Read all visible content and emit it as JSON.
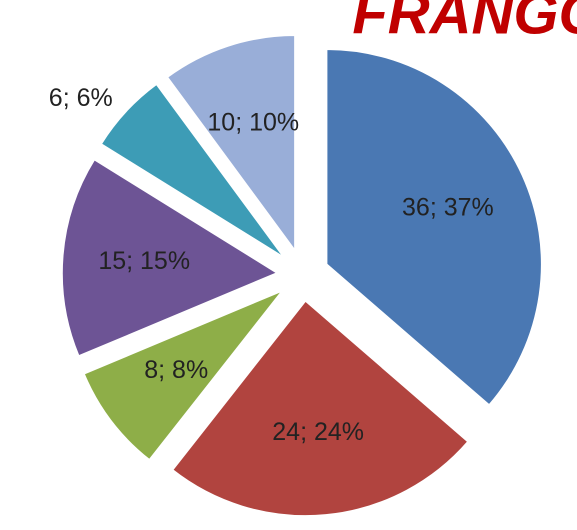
{
  "chart_data": {
    "type": "pie",
    "title": "FRANGO",
    "values": [
      36,
      24,
      8,
      15,
      6,
      10
    ],
    "value_labels": [
      "36; 37%",
      "24; 24%",
      "8; 8%",
      "15; 15%",
      "6; 6%",
      "10; 10%"
    ],
    "colors": [
      "#4a78b3",
      "#b1443f",
      "#8eae48",
      "#6d5495",
      "#3d9cb6",
      "#99aed8"
    ]
  }
}
